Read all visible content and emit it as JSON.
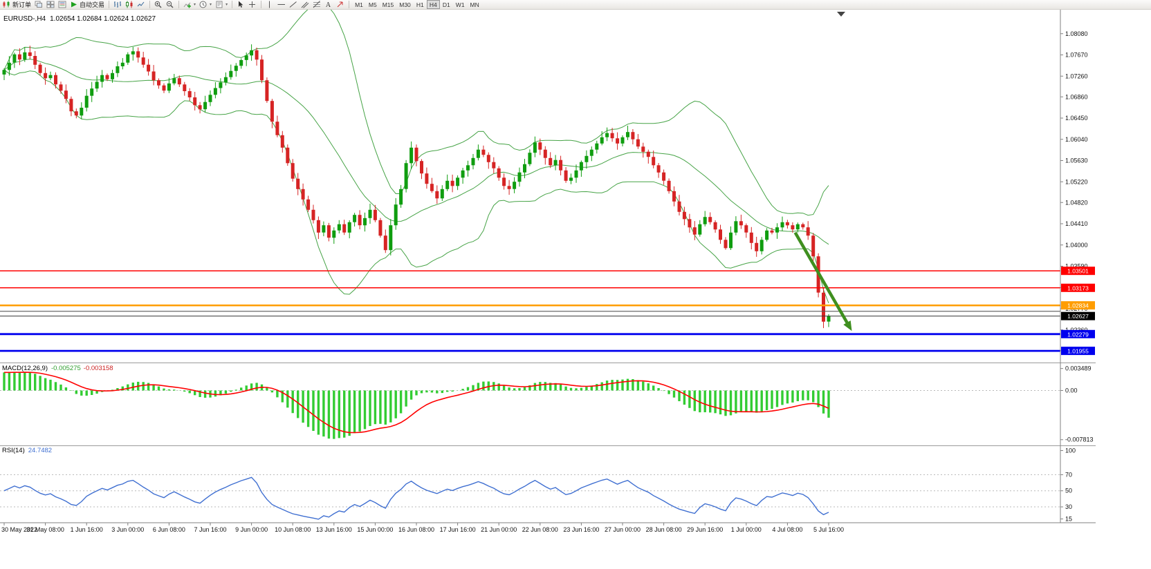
{
  "toolbar": {
    "new_order_label": "新订单",
    "autotrade_label": "自动交易",
    "items": [
      {
        "name": "new-order",
        "label": "新订单"
      },
      {
        "name": "cascade-windows"
      },
      {
        "name": "tile-windows"
      },
      {
        "name": "market-watch"
      },
      {
        "name": "autotrade",
        "label": "自动交易"
      },
      {
        "type": "sep"
      },
      {
        "name": "bar-chart"
      },
      {
        "name": "candle-chart"
      },
      {
        "name": "line-chart"
      },
      {
        "type": "sep"
      },
      {
        "name": "zoom-in"
      },
      {
        "name": "zoom-out"
      },
      {
        "type": "sep"
      },
      {
        "name": "indicators",
        "caret": true
      },
      {
        "name": "periods",
        "caret": true
      },
      {
        "name": "templates",
        "caret": true
      },
      {
        "type": "sep"
      },
      {
        "name": "cursor"
      },
      {
        "name": "crosshair"
      },
      {
        "type": "sep"
      },
      {
        "name": "vline"
      },
      {
        "name": "hline"
      },
      {
        "name": "trendline"
      },
      {
        "name": "channel"
      },
      {
        "name": "fibonacci"
      },
      {
        "name": "text"
      },
      {
        "name": "arrows"
      },
      {
        "type": "sep"
      },
      {
        "type": "timeframes"
      }
    ],
    "timeframes": [
      "M1",
      "M5",
      "M15",
      "M30",
      "H1",
      "H4",
      "D1",
      "W1",
      "MN"
    ],
    "active_timeframe": "H4"
  },
  "chart": {
    "symbol_period": "EURUSD-,H4",
    "ohlc_text": "1.02654 1.02684 1.02624 1.02627",
    "current_bar": {
      "open": 1.02654,
      "high": 1.02684,
      "low": 1.02624,
      "close": 1.02627
    },
    "price_axis": {
      "min": 1.0173,
      "max": 1.0853,
      "ticks": [
        "1.08080",
        "1.07670",
        "1.07260",
        "1.06860",
        "1.06450",
        "1.06040",
        "1.05630",
        "1.05220",
        "1.04820",
        "1.04410",
        "1.04000",
        "1.03590",
        "1.03180",
        "1.02770",
        "1.02360",
        "1.01960"
      ]
    },
    "levels": [
      {
        "price": 1.03501,
        "label": "1.03501",
        "color": "#ff0000",
        "width": 1.5
      },
      {
        "price": 1.03173,
        "label": "1.03173",
        "color": "#ff0000",
        "width": 1.5
      },
      {
        "price": 1.02834,
        "label": "1.02834",
        "color": "#ff9d00",
        "width": 2.5
      },
      {
        "price": 1.0272,
        "label": null,
        "color": "#5a5a5a",
        "width": 1.2
      },
      {
        "price": 1.02279,
        "label": "1.02279",
        "color": "#0000ee",
        "width": 2.8
      },
      {
        "price": 1.01955,
        "label": "1.01955",
        "color": "#0000ee",
        "width": 2.8
      }
    ],
    "current_price": {
      "value": 1.02627,
      "label": "1.02627",
      "box_color": "#000000"
    },
    "time_axis": {
      "labels": [
        "30 May 2022",
        "31 May 08:00",
        "1 Jun 16:00",
        "3 Jun 00:00",
        "6 Jun 08:00",
        "7 Jun 16:00",
        "9 Jun 00:00",
        "10 Jun 08:00",
        "13 Jun 16:00",
        "15 Jun 00:00",
        "16 Jun 08:00",
        "17 Jun 16:00",
        "21 Jun 00:00",
        "22 Jun 08:00",
        "23 Jun 16:00",
        "27 Jun 00:00",
        "28 Jun 08:00",
        "29 Jun 16:00",
        "1 Jul 00:00",
        "4 Jul 08:00",
        "5 Jul 16:00"
      ],
      "bars_per_label": 8
    },
    "arrow": {
      "from_bar": 153.5,
      "from_price": 1.0424,
      "to_bar": 164.5,
      "to_price": 1.0234,
      "color": "#3f8f1f",
      "width": 4.5
    }
  },
  "indicators": {
    "macd": {
      "label": "MACD(12,26,9)",
      "value_main": "-0.005275",
      "value_signal": "-0.003158",
      "axis_labels": [
        {
          "v": 0.003489,
          "t": "0.003489"
        },
        {
          "v": 0,
          "t": "0.00"
        },
        {
          "v": -0.007813,
          "t": "-0.007813"
        }
      ],
      "scale_min": -0.0085,
      "scale_max": 0.004,
      "histogram_color": "#33cc33",
      "signal_color": "#ff0000"
    },
    "rsi": {
      "label": "RSI(14)",
      "value": "24.7482",
      "levels": [
        70,
        50,
        30
      ],
      "axis_labels": [
        {
          "v": 100,
          "t": "100"
        },
        {
          "v": 70,
          "t": "70"
        },
        {
          "v": 50,
          "t": "50"
        },
        {
          "v": 30,
          "t": "30"
        },
        {
          "v": 15,
          "t": "15"
        }
      ],
      "scale_min": 12,
      "scale_max": 103,
      "line_color": "#3f6fd1"
    }
  },
  "chart_data": {
    "type": "candlestick",
    "symbol": "EURUSD",
    "timeframe": "H4",
    "first_candle_time": "30 May 2022 00:00",
    "last_candle_time": "5 Jul 2022 16:00",
    "overlays": [
      "Bollinger Bands (20,2)"
    ],
    "colors": {
      "up": "#0f9d0f",
      "down": "#d62424",
      "bollinger": "#46a346"
    },
    "closes": [
      1.0738,
      1.0752,
      1.0768,
      1.0758,
      1.0772,
      1.0765,
      1.0748,
      1.0732,
      1.0722,
      1.0728,
      1.071,
      1.0698,
      1.0682,
      1.0658,
      1.065,
      1.0665,
      1.0688,
      1.0702,
      1.0715,
      1.0728,
      1.072,
      1.0732,
      1.0745,
      1.0752,
      1.0768,
      1.0774,
      1.0762,
      1.0748,
      1.0735,
      1.0718,
      1.0708,
      1.0698,
      1.0712,
      1.0722,
      1.071,
      1.0697,
      1.0685,
      1.067,
      1.0662,
      1.0676,
      1.069,
      1.0703,
      1.0714,
      1.0724,
      1.0736,
      1.0746,
      1.0757,
      1.0766,
      1.0776,
      1.0758,
      1.0718,
      1.0678,
      1.0638,
      1.0612,
      1.0588,
      1.0558,
      1.0528,
      1.0508,
      1.0488,
      1.0468,
      1.0448,
      1.0424,
      1.0438,
      1.0414,
      1.0428,
      1.044,
      1.0424,
      1.0444,
      1.0458,
      1.0438,
      1.0452,
      1.0468,
      1.0448,
      1.0418,
      1.039,
      1.0438,
      1.0478,
      1.0508,
      1.0558,
      1.0588,
      1.0562,
      1.0538,
      1.0518,
      1.0504,
      1.049,
      1.0508,
      1.0524,
      1.0514,
      1.053,
      1.0544,
      1.0554,
      1.0568,
      1.0584,
      1.0574,
      1.056,
      1.0548,
      1.053,
      1.0514,
      1.0508,
      1.0522,
      1.054,
      1.0556,
      1.0578,
      1.0598,
      1.0584,
      1.0568,
      1.0554,
      1.0564,
      1.0544,
      1.0524,
      1.053,
      1.0544,
      1.056,
      1.0572,
      1.0584,
      1.0596,
      1.0608,
      1.0616,
      1.0606,
      1.0596,
      1.0608,
      1.0618,
      1.0604,
      1.059,
      1.058,
      1.057,
      1.0554,
      1.054,
      1.0524,
      1.0504,
      1.0484,
      1.0464,
      1.045,
      1.0434,
      1.042,
      1.044,
      1.0454,
      1.0444,
      1.043,
      1.041,
      1.0394,
      1.0424,
      1.0446,
      1.0438,
      1.0424,
      1.0404,
      1.0388,
      1.041,
      1.0428,
      1.0424,
      1.0434,
      1.0444,
      1.0438,
      1.043,
      1.044,
      1.0434,
      1.0418,
      1.0378,
      1.0308,
      1.0252,
      1.02627
    ]
  }
}
